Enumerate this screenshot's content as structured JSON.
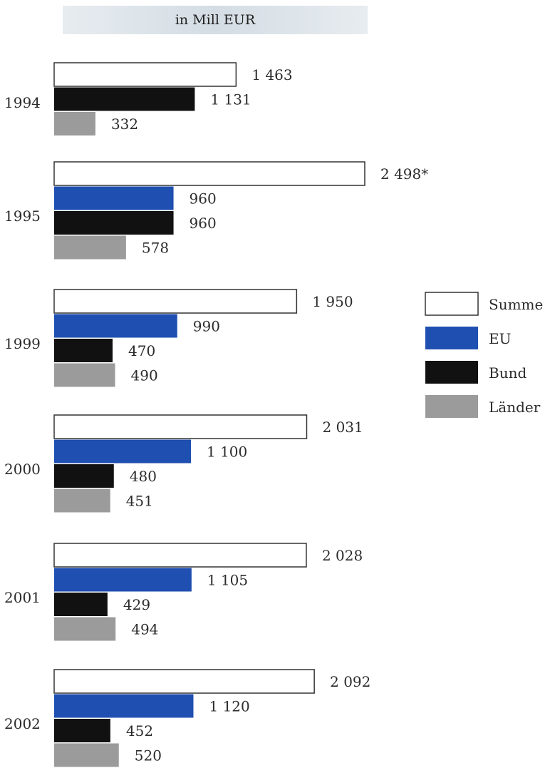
{
  "chart_data": {
    "type": "bar",
    "orientation": "horizontal",
    "title": "in Mill EUR",
    "categories": [
      "1994",
      "1995",
      "1999",
      "2000",
      "2001",
      "2002"
    ],
    "series": [
      {
        "name": "Summe",
        "color": "#ffffff",
        "values": [
          1463,
          2498,
          1950,
          2031,
          2028,
          2092
        ],
        "labels": [
          "1 463",
          "2 498*",
          "1 950",
          "2 031",
          "2 028",
          "2 092"
        ]
      },
      {
        "name": "EU",
        "color": "#1f4fb0",
        "values": [
          null,
          960,
          990,
          1100,
          1105,
          1120
        ],
        "labels": [
          "",
          "960",
          "990",
          "1 100",
          "1 105",
          "1 120"
        ]
      },
      {
        "name": "Bund",
        "color": "#111111",
        "values": [
          1131,
          960,
          470,
          480,
          429,
          452
        ],
        "labels": [
          "1 131",
          "960",
          "470",
          "480",
          "429",
          "452"
        ]
      },
      {
        "name": "Länder",
        "color": "#9b9b9b",
        "values": [
          332,
          578,
          490,
          451,
          494,
          520
        ],
        "labels": [
          "332",
          "578",
          "490",
          "451",
          "494",
          "520"
        ]
      }
    ],
    "legend": "right",
    "grid": false
  }
}
